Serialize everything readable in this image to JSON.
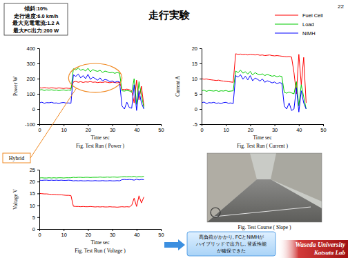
{
  "slide": {
    "page": "22",
    "title": "走行実験",
    "conditions": [
      "傾斜:10%",
      "走行速度:6.0 km/h",
      "最大充電電流:1.2 A",
      "最大FC出力:200 W"
    ],
    "photo_caption": "Fig. Test Course ( Slope )",
    "callout": [
      "高負荷がかかり, FCとNiMHが",
      "ハイブリッドで出力し, 登坂性能",
      "が確保できた"
    ],
    "footer": [
      "Waseda University",
      "Katsuta Lab"
    ]
  },
  "chart_data": [
    {
      "type": "line",
      "title": "Fig. Test Run ( Power )",
      "x_label": "Time sec",
      "y_label": "Power W",
      "legend": "top-right",
      "x": [
        0,
        1,
        2,
        3,
        4,
        5,
        6,
        7,
        8,
        9,
        10,
        11,
        12,
        13,
        14,
        15,
        16,
        17,
        18,
        19,
        20,
        21,
        22,
        23,
        24,
        25,
        26,
        27,
        28,
        29,
        30,
        31,
        32,
        33,
        34,
        35,
        36,
        37,
        38,
        39,
        40,
        41,
        42,
        43
      ],
      "xlim": [
        0,
        50
      ],
      "xticks": [
        0,
        10,
        20,
        30,
        40,
        50
      ],
      "ylim": [
        -100,
        400
      ],
      "yticks": [
        -100,
        0,
        100,
        200,
        300,
        400
      ],
      "annotations": [
        {
          "text": "Hybrid",
          "x": [
            12,
            34
          ],
          "y": [
            110,
            300
          ]
        }
      ],
      "series": [
        {
          "name": "Fuel Cell",
          "color": "#ff0000",
          "values": [
            140,
            138,
            141,
            139,
            137,
            140,
            138,
            136,
            139,
            137,
            135,
            138,
            136,
            135,
            178,
            182,
            176,
            180,
            175,
            179,
            177,
            181,
            176,
            178,
            174,
            177,
            175,
            179,
            176,
            173,
            177,
            175,
            172,
            176,
            130,
            128,
            131,
            127,
            120,
            40,
            190,
            60,
            150,
            20
          ]
        },
        {
          "name": "Load",
          "color": "#00cc00",
          "values": [
            125,
            128,
            122,
            126,
            124,
            127,
            123,
            125,
            121,
            124,
            126,
            122,
            125,
            123,
            265,
            258,
            270,
            255,
            262,
            250,
            268,
            245,
            260,
            252,
            248,
            255,
            240,
            250,
            245,
            238,
            242,
            235,
            240,
            236,
            120,
            118,
            122,
            119,
            110,
            200,
            30,
            180,
            90,
            10
          ]
        },
        {
          "name": "NiMH",
          "color": "#0000ff",
          "values": [
            40,
            45,
            38,
            42,
            41,
            44,
            39,
            40,
            37,
            41,
            43,
            39,
            40,
            38,
            225,
            215,
            230,
            205,
            220,
            200,
            228,
            195,
            210,
            200,
            190,
            205,
            185,
            195,
            190,
            180,
            185,
            175,
            182,
            178,
            20,
            0,
            45,
            10,
            5,
            160,
            -10,
            120,
            40,
            0
          ]
        }
      ]
    },
    {
      "type": "line",
      "title": "Fig. Test Run ( Current )",
      "x_label": "Time sec",
      "y_label": "Current A",
      "x": [
        0,
        1,
        2,
        3,
        4,
        5,
        6,
        7,
        8,
        9,
        10,
        11,
        12,
        13,
        14,
        15,
        16,
        17,
        18,
        19,
        20,
        21,
        22,
        23,
        24,
        25,
        26,
        27,
        28,
        29,
        30,
        31,
        32,
        33,
        34,
        35,
        36,
        37,
        38,
        39,
        40,
        41,
        42,
        43
      ],
      "xlim": [
        0,
        50
      ],
      "xticks": [
        0,
        10,
        20,
        30,
        40,
        50
      ],
      "ylim": [
        -5,
        20
      ],
      "yticks": [
        -5,
        0,
        5,
        10,
        15,
        20
      ],
      "series": [
        {
          "name": "Fuel Cell",
          "color": "#ff0000",
          "values": [
            10,
            9.8,
            9.9,
            9.7,
            9.6,
            9.5,
            9.4,
            9.5,
            9.3,
            9.2,
            9.1,
            9.0,
            8.9,
            8.8,
            18.2,
            18,
            18.1,
            17.9,
            18,
            17.8,
            18,
            17.9,
            17.8,
            17.9,
            17.7,
            17.8,
            17.6,
            17.7,
            17.8,
            17.6,
            17.5,
            17.6,
            17.5,
            17.4,
            17.3,
            17.2,
            17.3,
            17.1,
            12,
            5,
            18,
            8,
            17,
            2
          ]
        },
        {
          "name": "Load",
          "color": "#00cc00",
          "values": [
            6,
            6.2,
            5.8,
            6.1,
            6,
            5.9,
            6.1,
            5.8,
            6,
            5.9,
            6.1,
            5.8,
            5.9,
            6,
            12.5,
            12,
            12.8,
            11.8,
            12.3,
            11.5,
            12.4,
            11.2,
            12,
            11.5,
            11.3,
            11.6,
            11,
            11.4,
            11.1,
            10.8,
            11,
            10.6,
            10.9,
            10.7,
            5.5,
            5.2,
            5.6,
            5.3,
            5,
            9,
            1,
            8,
            4,
            0
          ]
        },
        {
          "name": "NiMH",
          "color": "#0000ff",
          "values": [
            2,
            2.3,
            1.8,
            2.1,
            2,
            2.2,
            1.9,
            2,
            1.8,
            2.1,
            2.2,
            1.9,
            2,
            1.8,
            11,
            10.5,
            11.3,
            9.8,
            10.8,
            9.6,
            11,
            9.3,
            10.2,
            9.8,
            9.2,
            9.9,
            8.8,
            9.3,
            9,
            8.6,
            8.9,
            8.3,
            8.7,
            8.5,
            1,
            0,
            2,
            -0.5,
            0,
            7,
            -1,
            6,
            2,
            0
          ]
        }
      ]
    },
    {
      "type": "line",
      "title": "Fig. Test Run ( Voltage )",
      "x_label": "Time sec",
      "y_label": "Voltage V",
      "x": [
        0,
        1,
        2,
        3,
        4,
        5,
        6,
        7,
        8,
        9,
        10,
        11,
        12,
        13,
        14,
        15,
        16,
        17,
        18,
        19,
        20,
        21,
        22,
        23,
        24,
        25,
        26,
        27,
        28,
        29,
        30,
        31,
        32,
        33,
        34,
        35,
        36,
        37,
        38,
        39,
        40,
        41,
        42,
        43
      ],
      "xlim": [
        0,
        50
      ],
      "xticks": [
        0,
        10,
        20,
        30,
        40,
        50
      ],
      "ylim": [
        0,
        25
      ],
      "yticks": [
        0,
        5,
        10,
        15,
        20,
        25
      ],
      "series": [
        {
          "name": "Fuel Cell",
          "color": "#ff0000",
          "values": [
            15,
            14.9,
            14.8,
            14.8,
            14.7,
            14.6,
            14.6,
            14.5,
            14.4,
            14.4,
            14.3,
            14.2,
            14.2,
            14.1,
            9.6,
            9.5,
            9.5,
            9.4,
            9.5,
            9.4,
            9.4,
            9.5,
            9.4,
            9.3,
            9.4,
            9.3,
            9.4,
            9.3,
            9.3,
            9.4,
            9.3,
            9.3,
            9.2,
            9.3,
            9.4,
            9.3,
            9.4,
            9.3,
            10,
            13,
            9.5,
            14,
            11,
            13.5
          ]
        },
        {
          "name": "Load",
          "color": "#00cc00",
          "values": [
            21.5,
            21.6,
            21.5,
            21.5,
            21.6,
            21.5,
            21.6,
            21.5,
            21.6,
            21.6,
            21.5,
            21.6,
            21.6,
            21.6,
            21.8,
            21.7,
            21.8,
            21.8,
            21.7,
            21.8,
            21.8,
            21.7,
            21.8,
            21.8,
            21.8,
            21.9,
            21.8,
            21.8,
            21.9,
            21.8,
            21.9,
            21.9,
            21.8,
            21.9,
            22,
            22.1,
            22,
            22.1,
            22,
            22.2,
            21.9,
            22.1,
            22,
            22.2
          ]
        },
        {
          "name": "NiMH",
          "color": "#0000ff",
          "values": [
            20.6,
            20.5,
            20.6,
            20.6,
            20.5,
            20.6,
            20.5,
            20.6,
            20.5,
            20.6,
            20.5,
            20.5,
            20.6,
            20.5,
            20.3,
            20.4,
            20.3,
            20.4,
            20.3,
            20.3,
            20.4,
            20.3,
            20.3,
            20.4,
            20.3,
            20.3,
            20.4,
            20.3,
            20.3,
            20.4,
            20.3,
            20.3,
            20.4,
            20.3,
            20.8,
            20.9,
            20.8,
            20.9,
            20.8,
            20.6,
            21,
            20.7,
            20.9,
            20.8
          ]
        }
      ]
    }
  ]
}
